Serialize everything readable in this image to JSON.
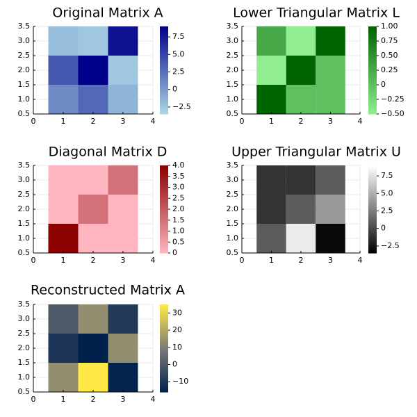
{
  "chart_data": [
    {
      "type": "heatmap",
      "title": "Original Matrix A",
      "x": [
        1,
        2,
        3
      ],
      "y": [
        1,
        2,
        3
      ],
      "xlim": [
        0,
        4
      ],
      "ylim": [
        0.5,
        3.5
      ],
      "xticks": [
        "0",
        "1",
        "2",
        "3",
        "4"
      ],
      "yticks": [
        "0.5",
        "1.0",
        "1.5",
        "2.0",
        "2.5",
        "3.0",
        "3.5"
      ],
      "z": [
        [
          1,
          3,
          -1.5
        ],
        [
          4,
          9,
          -2.5
        ],
        [
          -2,
          -2.5,
          8
        ]
      ],
      "clim": [
        -3.5,
        9
      ],
      "colorbar_ticks": [
        -2.5,
        0,
        2.5,
        5,
        7.5
      ],
      "colorbar_labels": [
        "−2.5",
        "0",
        "2.5",
        "5.0",
        "7.5"
      ],
      "colormap": [
        "#add8e6",
        "#00008b"
      ]
    },
    {
      "type": "heatmap",
      "title": "Lower Triangular Matrix L",
      "x": [
        1,
        2,
        3
      ],
      "y": [
        1,
        2,
        3
      ],
      "xlim": [
        0,
        4
      ],
      "ylim": [
        0.5,
        3.5
      ],
      "xticks": [
        "0",
        "1",
        "2",
        "3",
        "4"
      ],
      "yticks": [
        "0.5",
        "1.0",
        "1.5",
        "2.0",
        "2.5",
        "3.0",
        "3.5"
      ],
      "z": [
        [
          1,
          0,
          0
        ],
        [
          -0.5,
          1,
          0
        ],
        [
          0.25,
          -0.5,
          1
        ]
      ],
      "clim": [
        -0.5,
        1
      ],
      "colorbar_ticks": [
        -0.5,
        -0.25,
        0,
        0.25,
        0.5,
        0.75,
        1
      ],
      "colorbar_labels": [
        "−0.50",
        "−0.25",
        "0",
        "0.25",
        "0.50",
        "0.75",
        "1.00"
      ],
      "colormap": [
        "#90ee90",
        "#006400"
      ]
    },
    {
      "type": "heatmap",
      "title": "Diagonal Matrix D",
      "x": [
        1,
        2,
        3
      ],
      "y": [
        1,
        2,
        3
      ],
      "xlim": [
        0,
        4
      ],
      "ylim": [
        0.5,
        3.5
      ],
      "xticks": [
        "0",
        "1",
        "2",
        "3",
        "4"
      ],
      "yticks": [
        "0.5",
        "1.0",
        "1.5",
        "2.0",
        "2.5",
        "3.0",
        "3.5"
      ],
      "z": [
        [
          4,
          0,
          0
        ],
        [
          0,
          1.5,
          0
        ],
        [
          0,
          0,
          1.5
        ]
      ],
      "clim": [
        0,
        4
      ],
      "colorbar_ticks": [
        0,
        0.5,
        1,
        1.5,
        2,
        2.5,
        3,
        3.5,
        4
      ],
      "colorbar_labels": [
        "0",
        "0.5",
        "1.0",
        "1.5",
        "2.0",
        "2.5",
        "3.0",
        "3.5",
        "4.0"
      ],
      "colormap": [
        "#ffb6c1",
        "#8b0000"
      ]
    },
    {
      "type": "heatmap",
      "title": "Upper Triangular Matrix U",
      "x": [
        1,
        2,
        3
      ],
      "y": [
        1,
        2,
        3
      ],
      "xlim": [
        0,
        4
      ],
      "ylim": [
        0.5,
        3.5
      ],
      "xticks": [
        "0",
        "1",
        "2",
        "3",
        "4"
      ],
      "yticks": [
        "0.5",
        "1.0",
        "1.5",
        "2.0",
        "2.5",
        "3.0",
        "3.5"
      ],
      "z": [
        [
          1,
          8,
          -3
        ],
        [
          -1,
          1,
          4
        ],
        [
          -1,
          -1,
          1
        ]
      ],
      "clim": [
        -3.5,
        9
      ],
      "colorbar_ticks": [
        -2.5,
        0,
        2.5,
        5,
        7.5
      ],
      "colorbar_labels": [
        "−2.5",
        "0",
        "2.5",
        "5.0",
        "7.5"
      ],
      "colormap": [
        "#000000",
        "#ffffff"
      ]
    },
    {
      "type": "heatmap",
      "title": "Reconstructed Matrix A",
      "x": [
        1,
        2,
        3
      ],
      "y": [
        1,
        2,
        3
      ],
      "xlim": [
        0,
        4
      ],
      "ylim": [
        0.5,
        3.5
      ],
      "xticks": [
        "0",
        "1",
        "2",
        "3",
        "4"
      ],
      "yticks": [
        "0.5",
        "1.0",
        "1.5",
        "2.0",
        "2.5",
        "3.0",
        "3.5"
      ],
      "z": [
        [
          14,
          35,
          -15
        ],
        [
          -10,
          -16,
          14
        ],
        [
          0,
          14,
          -9
        ]
      ],
      "clim": [
        -16,
        35
      ],
      "colorbar_ticks": [
        -10,
        0,
        10,
        20,
        30
      ],
      "colorbar_labels": [
        "−10",
        "0",
        "10",
        "20",
        "30"
      ],
      "colormap": [
        "#00204c",
        "#7c7b78",
        "#ffe945"
      ]
    }
  ]
}
